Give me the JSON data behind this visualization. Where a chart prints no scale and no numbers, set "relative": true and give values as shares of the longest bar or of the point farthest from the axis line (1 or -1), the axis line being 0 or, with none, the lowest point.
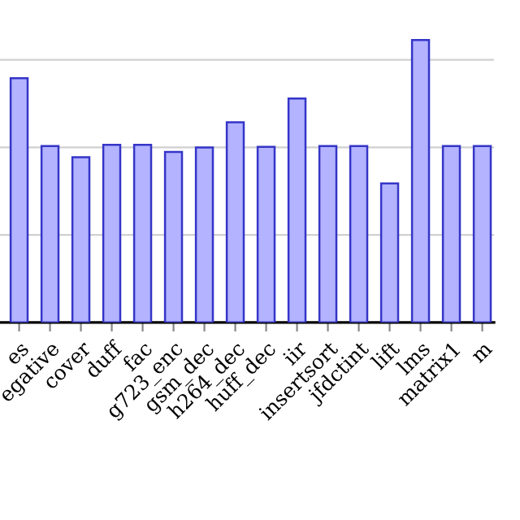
{
  "chart_data": {
    "type": "bar",
    "relative": true,
    "grid": "y",
    "categories": [
      "es",
      "egative",
      "cover",
      "duff",
      "fac",
      "g723_enc",
      "gsm_dec",
      "h264_dec",
      "huff_dec",
      "iir",
      "insertsort",
      "jfdctint",
      "lift",
      "lms",
      "matrix1",
      "m"
    ],
    "values": [
      0.865,
      0.625,
      0.585,
      0.629,
      0.629,
      0.604,
      0.62,
      0.709,
      0.622,
      0.793,
      0.625,
      0.625,
      0.492,
      1.0,
      0.625,
      0.625
    ],
    "color": "#b3b3ff"
  }
}
